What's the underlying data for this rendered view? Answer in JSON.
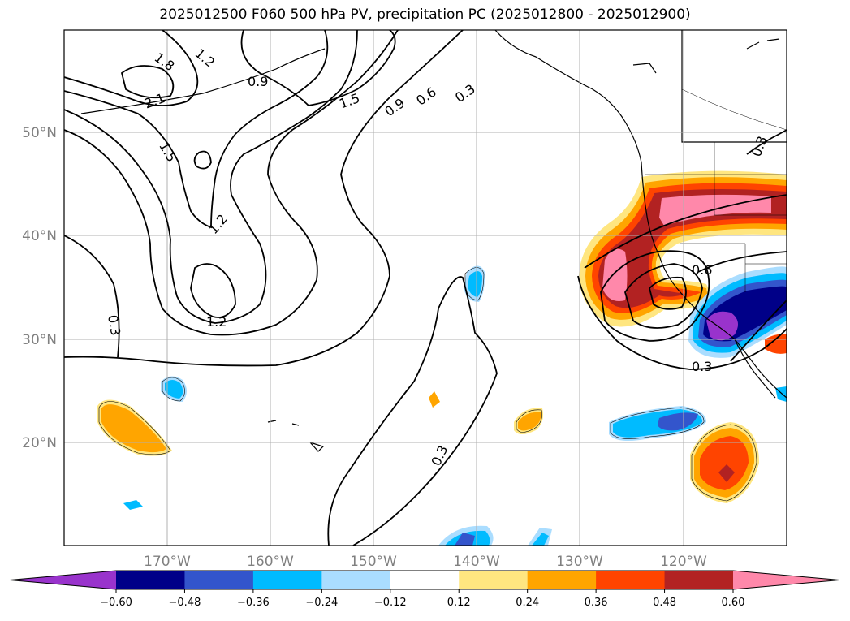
{
  "title": "2025012500 F060 500 hPa PV, precipitation PC (2025012800 - 2025012900)",
  "map": {
    "lat_labels": [
      "50°N",
      "40°N",
      "30°N",
      "20°N"
    ],
    "lon_labels": [
      "170°W",
      "160°W",
      "150°W",
      "140°W",
      "130°W",
      "120°W"
    ],
    "contour_labels": [
      "1.8",
      "1.2",
      "0.9",
      "2.1",
      "1.5",
      "1.5",
      "0.9",
      "0.6",
      "0.3",
      "1.2",
      "1.2",
      "0.3",
      "0.3",
      "0.6",
      "0.3",
      "0.3"
    ]
  },
  "colorbar": {
    "ticks": [
      "−0.60",
      "−0.48",
      "−0.36",
      "−0.24",
      "−0.12",
      "0.12",
      "0.24",
      "0.36",
      "0.48",
      "0.60"
    ],
    "colors": [
      "#9933cc",
      "#000088",
      "#3355cc",
      "#00bbff",
      "#aaddff",
      "#ffffff",
      "#ffe680",
      "#ffa500",
      "#ff4400",
      "#b22222",
      "#ff88aa"
    ]
  }
}
